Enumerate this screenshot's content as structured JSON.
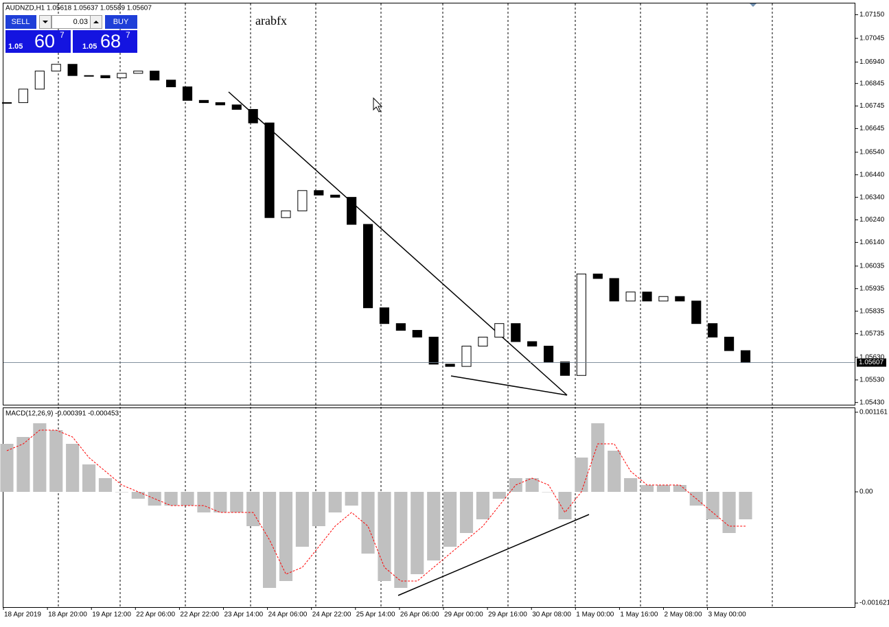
{
  "trade_panel": {
    "sell": "SELL",
    "buy": "BUY",
    "lot": "0.03",
    "sell_price": {
      "prefix": "1.05",
      "big": "60",
      "sup": "7"
    },
    "buy_price": {
      "prefix": "1.05",
      "big": "68",
      "sup": "7"
    }
  },
  "chart_data": [
    {
      "type": "candlestick",
      "title": "AUDNZD,H1  1.05618 1.05637 1.05589 1.05607",
      "annotation": "arabfx",
      "values": [
        1.0676,
        1.0682,
        1.069,
        1.0693,
        1.0688,
        1.0688,
        1.0687,
        1.0689,
        1.069,
        1.0686,
        1.0683,
        1.0677,
        1.0676,
        1.0675,
        1.0673,
        1.0667,
        1.0625,
        1.0628,
        1.0637,
        1.0635,
        1.0634,
        1.0622,
        1.0585,
        1.0578,
        1.0575,
        1.0572,
        1.056,
        1.0559,
        1.0568,
        1.0572,
        1.0578,
        1.057,
        1.0568,
        1.0561,
        1.0555,
        1.06,
        1.0598,
        1.0588,
        1.0592,
        1.0588,
        1.059,
        1.0588,
        1.0578,
        1.0572,
        1.0566,
        1.05607
      ],
      "up_color": "#ffffff",
      "down_color": "#000000",
      "current_price": 1.05607,
      "ylim": [
        1.0542,
        1.072
      ],
      "yticks": [
        {
          "value": 1.0715,
          "label": "1.07150"
        },
        1.07045,
        {
          "value": 1.0694,
          "label": "1.06940"
        },
        1.06845,
        1.06745,
        1.06645,
        {
          "value": 1.0654,
          "label": "1.06540"
        },
        {
          "value": 1.0644,
          "label": "1.06440"
        },
        {
          "value": 1.0634,
          "label": "1.06340"
        },
        {
          "value": 1.0624,
          "label": "1.06240"
        },
        {
          "value": 1.0614,
          "label": "1.06140"
        },
        1.06035,
        1.05935,
        1.05835,
        1.05735,
        {
          "value": 1.0563,
          "label": "1.05630"
        },
        {
          "value": 1.0553,
          "label": "1.05530"
        },
        {
          "value": 1.0543,
          "label": "1.05430"
        }
      ],
      "time_labels": [
        "18 Apr 2019",
        "18 Apr 20:00",
        "19 Apr 12:00",
        "22 Apr 06:00",
        "22 Apr 22:00",
        "23 Apr 14:00",
        "24 Apr 06:00",
        "24 Apr 22:00",
        "25 Apr 14:00",
        "26 Apr 06:00",
        "29 Apr 00:00",
        "29 Apr 16:00",
        "30 Apr 08:00",
        "1 May 00:00",
        "1 May 16:00",
        "2 May 08:00",
        "3 May 00:00"
      ]
    },
    {
      "type": "macd",
      "title": "MACD(12,26,9) -0.000391 -0.000453",
      "histogram": [
        0.0007,
        0.0008,
        0.001,
        0.0009,
        0.0007,
        0.0004,
        0.0002,
        0,
        -0.0001,
        -0.0002,
        -0.0002,
        -0.0002,
        -0.0003,
        -0.0003,
        -0.0003,
        -0.0005,
        -0.0014,
        -0.0013,
        -0.0008,
        -0.0005,
        -0.0003,
        -0.0002,
        -0.0009,
        -0.0013,
        -0.0014,
        -0.0012,
        -0.001,
        -0.0008,
        -0.0006,
        -0.0004,
        -0.0001,
        0.0002,
        0.0002,
        0,
        -0.0004,
        0.0005,
        0.001,
        0.0006,
        0.0002,
        0.0001,
        0.0001,
        0.0001,
        -0.0002,
        -0.0004,
        -0.0006,
        -0.0004
      ],
      "signal": [
        0.0006,
        0.0007,
        0.0009,
        0.0009,
        0.0008,
        0.0005,
        0.0003,
        0.0001,
        0,
        -0.0001,
        -0.0002,
        -0.0002,
        -0.0002,
        -0.0003,
        -0.0003,
        -0.0003,
        -0.0007,
        -0.0012,
        -0.0011,
        -0.0008,
        -0.0005,
        -0.0003,
        -0.0005,
        -0.0011,
        -0.0013,
        -0.0013,
        -0.0011,
        -0.0009,
        -0.0007,
        -0.0005,
        -0.0002,
        0.0001,
        0.0002,
        0.0001,
        -0.0003,
        0,
        0.0007,
        0.0007,
        0.0003,
        0.0001,
        0.0001,
        0.0001,
        -0.0001,
        -0.0003,
        -0.0005,
        -0.0005
      ],
      "histogram_color": "#c0c0c0",
      "signal_color": "#ff0000",
      "ylim": [
        -0.00168,
        0.00122
      ],
      "yticks": [
        0.001161,
        {
          "value": 0,
          "label": "0.00"
        },
        -0.001621
      ]
    }
  ]
}
